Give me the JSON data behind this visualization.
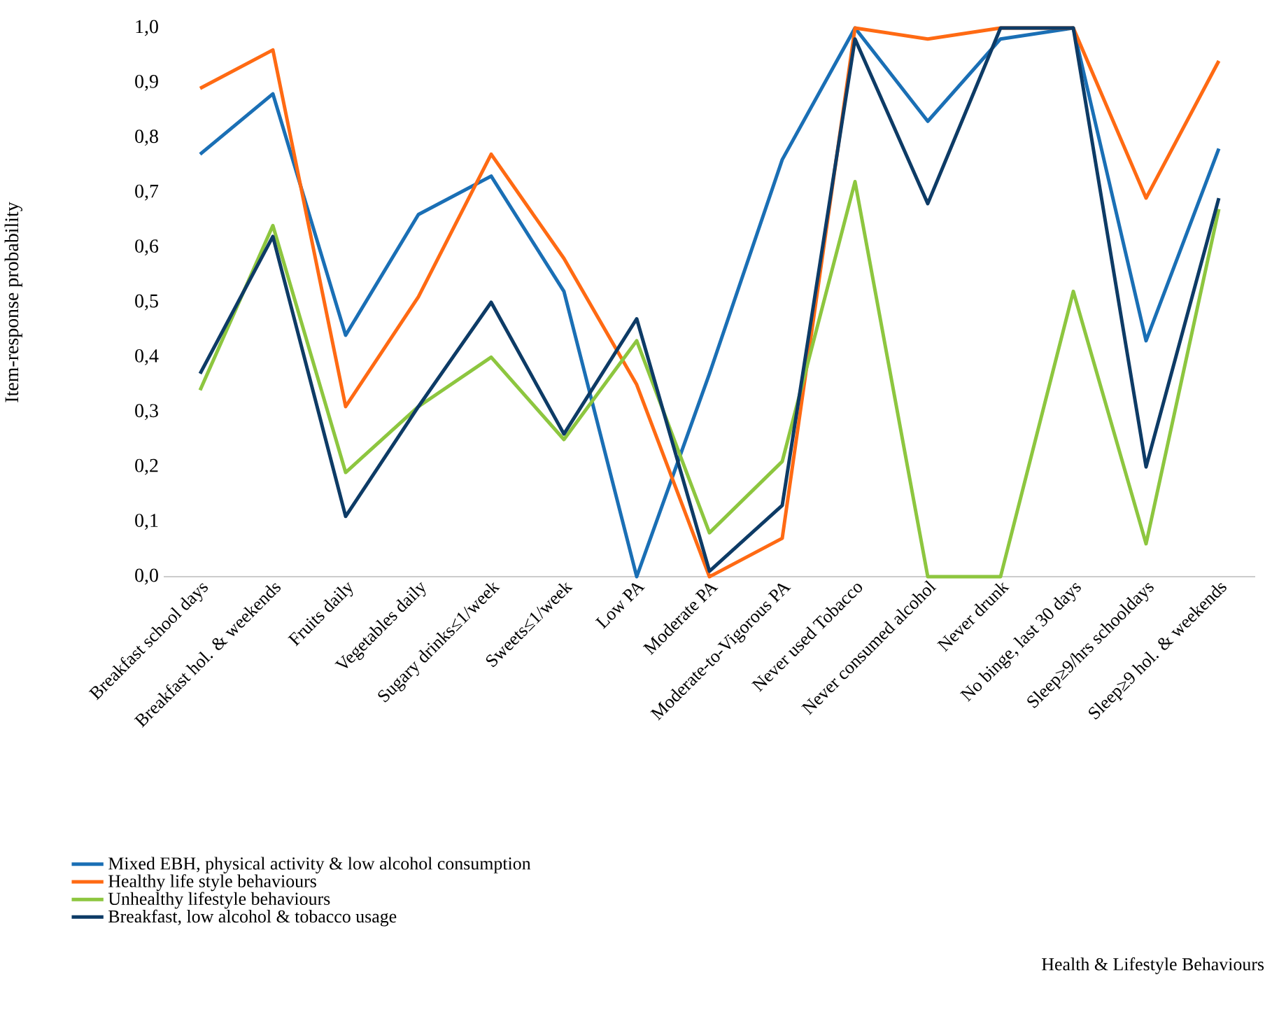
{
  "chart_data": {
    "type": "line",
    "annotations": [
      "Health & Lifestyle Behaviours"
    ],
    "ylabel": "Item-response probability",
    "categories": [
      "Breakfast school days",
      "Breakfast hol. & weekends",
      "Fruits daily",
      "Vegetables daily",
      "Sugary drinks≤1/week",
      "Sweets≤1/week",
      "Low PA",
      "Moderate PA",
      "Moderate-to-Vigorous PA",
      "Never used Tobacco",
      "Never consumed alcohol",
      "Never drunk",
      "No binge, last 30 days",
      "Sleep≥9/hrs schooldays",
      "Sleep≥9 hol. & weekends"
    ],
    "ylim": [
      0,
      1
    ],
    "yticks": [
      {
        "value": 0,
        "label": "0,0"
      },
      {
        "value": 0.1,
        "label": "0,1"
      },
      {
        "value": 0.2,
        "label": "0,2"
      },
      {
        "value": 0.3,
        "label": "0,3"
      },
      {
        "value": 0.4,
        "label": "0,4"
      },
      {
        "value": 0.5,
        "label": "0,5"
      },
      {
        "value": 0.6,
        "label": "0,6"
      },
      {
        "value": 0.7,
        "label": "0,7"
      },
      {
        "value": 0.8,
        "label": "0,8"
      },
      {
        "value": 0.9,
        "label": "0,9"
      },
      {
        "value": 1,
        "label": "1,0"
      }
    ],
    "legend": "bottom",
    "marker": "none",
    "line_style": "solid",
    "series": [
      {
        "name": "Mixed EBH, physical activity & low alcohol consumption",
        "color": "#1a6fb5",
        "values": [
          0.77,
          0.88,
          0.44,
          0.66,
          0.73,
          0.52,
          0.0,
          0.37,
          0.76,
          1.0,
          0.83,
          0.98,
          1.0,
          0.43,
          0.78
        ]
      },
      {
        "name": "Healthy life style behaviours",
        "color": "#ff6a13",
        "values": [
          0.89,
          0.96,
          0.31,
          0.51,
          0.77,
          0.58,
          0.35,
          0.0,
          0.07,
          1.0,
          0.98,
          1.0,
          1.0,
          0.69,
          0.94
        ]
      },
      {
        "name": "Unhealthy lifestyle behaviours",
        "color": "#8dc63f",
        "values": [
          0.34,
          0.64,
          0.19,
          0.31,
          0.4,
          0.25,
          0.43,
          0.08,
          0.21,
          0.72,
          0.0,
          0.0,
          0.52,
          0.06,
          0.67
        ]
      },
      {
        "name": "Breakfast, low alcohol & tobacco usage",
        "color": "#0d3b66",
        "values": [
          0.37,
          0.62,
          0.11,
          0.31,
          0.5,
          0.26,
          0.47,
          0.01,
          0.13,
          0.98,
          0.68,
          1.0,
          1.0,
          0.2,
          0.69
        ]
      }
    ]
  }
}
